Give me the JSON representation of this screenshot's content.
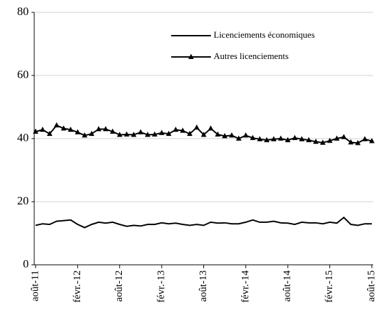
{
  "chart_data": {
    "type": "line",
    "categories": [
      "août-11",
      null,
      null,
      null,
      null,
      null,
      "févr.-12",
      null,
      null,
      null,
      null,
      null,
      "août-12",
      null,
      null,
      null,
      null,
      null,
      "févr.-13",
      null,
      null,
      null,
      null,
      null,
      "août-13",
      null,
      null,
      null,
      null,
      null,
      "févr.-14",
      null,
      null,
      null,
      null,
      null,
      "août-14",
      null,
      null,
      null,
      null,
      null,
      "févr.-15",
      null,
      null,
      null,
      null,
      null,
      "août-15"
    ],
    "series": [
      {
        "name": "Licenciements économiques",
        "color": "#000000",
        "marker": "none",
        "values": [
          12.5,
          13,
          12.8,
          13.8,
          14,
          14.2,
          12.8,
          11.8,
          12.8,
          13.5,
          13.2,
          13.5,
          12.8,
          12.2,
          12.5,
          12.3,
          12.8,
          12.8,
          13.3,
          13,
          13.2,
          12.8,
          12.5,
          12.8,
          12.5,
          13.5,
          13.2,
          13.3,
          13,
          13,
          13.5,
          14.2,
          13.5,
          13.5,
          13.8,
          13.3,
          13.2,
          12.8,
          13.5,
          13.3,
          13.3,
          13,
          13.5,
          13.2,
          15,
          12.8,
          12.5,
          13,
          13
        ]
      },
      {
        "name": "Autres licenciements",
        "color": "#000000",
        "marker": "triangle",
        "values": [
          42.2,
          42.8,
          41.5,
          44.2,
          43.2,
          42.8,
          42,
          41,
          41.5,
          43,
          43,
          42.2,
          41.2,
          41.3,
          41.2,
          42,
          41.2,
          41.3,
          41.8,
          41.5,
          42.8,
          42.5,
          41.5,
          43.5,
          41.2,
          43.2,
          41.3,
          40.8,
          41,
          40,
          41,
          40.2,
          39.8,
          39.5,
          39.8,
          40,
          39.5,
          40.2,
          39.8,
          39.5,
          39,
          38.7,
          39.3,
          40,
          40.5,
          38.8,
          38.6,
          39.8,
          39.2
        ]
      }
    ],
    "ylim": [
      0,
      80
    ],
    "yticks": [
      0,
      20,
      40,
      60,
      80
    ],
    "grid": true,
    "legend": "upper-right"
  }
}
